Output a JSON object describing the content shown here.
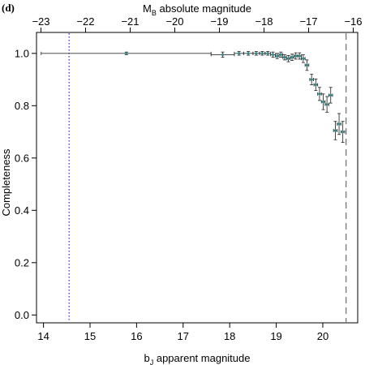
{
  "panel_label": "(d)",
  "chart_data": {
    "type": "scatter",
    "xlabel_bottom": "b",
    "xlabel_bottom_sub": "J",
    "xlabel_bottom_rest": " apparent magnitude",
    "xlabel_top": "M",
    "xlabel_top_sub": "B",
    "xlabel_top_rest": " absolute magnitude",
    "ylabel": "Completeness",
    "xlim": [
      13.85,
      20.75
    ],
    "ylim": [
      -0.03,
      1.08
    ],
    "top_xlim": [
      -23.1,
      -15.9
    ],
    "xticks_bottom": [
      14,
      15,
      16,
      17,
      18,
      19,
      20
    ],
    "xtick_labels_bottom": [
      "14",
      "15",
      "16",
      "17",
      "18",
      "19",
      "20"
    ],
    "xticks_top": [
      -23,
      -22,
      -21,
      -20,
      -19,
      -18,
      -17,
      -16
    ],
    "xtick_labels_top": [
      "−23",
      "−22",
      "−21",
      "−20",
      "−19",
      "−18",
      "−17",
      "−16"
    ],
    "yticks": [
      0.0,
      0.2,
      0.4,
      0.6,
      0.8,
      1.0
    ],
    "ytick_labels": [
      "0.0",
      "0.2",
      "0.4",
      "0.6",
      "0.8",
      "1.0"
    ],
    "vlines": [
      {
        "x": 14.55,
        "style": "dotted",
        "color": "#3b3bdf"
      },
      {
        "x": 20.5,
        "style": "dashed",
        "color": "#777777"
      }
    ],
    "series": [
      {
        "points": [
          {
            "x": 15.78,
            "y": 1.0,
            "xlo": 13.95,
            "xhi": 17.6,
            "ylo": 0.995,
            "yhi": 1.005
          },
          {
            "x": 17.85,
            "y": 0.995,
            "xlo": 17.6,
            "xhi": 18.1,
            "ylo": 0.985,
            "yhi": 1.005
          },
          {
            "x": 18.2,
            "y": 1.0,
            "xlo": 18.1,
            "xhi": 18.3,
            "ylo": 0.993,
            "yhi": 1.007
          },
          {
            "x": 18.4,
            "y": 1.0,
            "xlo": 18.3,
            "xhi": 18.5,
            "ylo": 0.993,
            "yhi": 1.007
          },
          {
            "x": 18.57,
            "y": 1.0,
            "xlo": 18.5,
            "xhi": 18.64,
            "ylo": 0.993,
            "yhi": 1.007
          },
          {
            "x": 18.7,
            "y": 1.0,
            "xlo": 18.64,
            "xhi": 18.76,
            "ylo": 0.993,
            "yhi": 1.007
          },
          {
            "x": 18.82,
            "y": 1.0,
            "xlo": 18.76,
            "xhi": 18.88,
            "ylo": 0.993,
            "yhi": 1.007
          },
          {
            "x": 18.93,
            "y": 0.995,
            "xlo": 18.88,
            "xhi": 18.98,
            "ylo": 0.985,
            "yhi": 1.005
          },
          {
            "x": 19.02,
            "y": 0.99,
            "xlo": 18.98,
            "xhi": 19.06,
            "ylo": 0.98,
            "yhi": 1.0
          },
          {
            "x": 19.1,
            "y": 0.995,
            "xlo": 19.06,
            "xhi": 19.14,
            "ylo": 0.985,
            "yhi": 1.005
          },
          {
            "x": 19.18,
            "y": 0.985,
            "xlo": 19.14,
            "xhi": 19.22,
            "ylo": 0.975,
            "yhi": 0.995
          },
          {
            "x": 19.26,
            "y": 0.98,
            "xlo": 19.22,
            "xhi": 19.3,
            "ylo": 0.968,
            "yhi": 0.992
          },
          {
            "x": 19.34,
            "y": 0.985,
            "xlo": 19.3,
            "xhi": 19.38,
            "ylo": 0.973,
            "yhi": 0.997
          },
          {
            "x": 19.42,
            "y": 0.99,
            "xlo": 19.38,
            "xhi": 19.46,
            "ylo": 0.978,
            "yhi": 1.002
          },
          {
            "x": 19.5,
            "y": 0.99,
            "xlo": 19.46,
            "xhi": 19.54,
            "ylo": 0.978,
            "yhi": 1.002
          },
          {
            "x": 19.58,
            "y": 0.98,
            "xlo": 19.54,
            "xhi": 19.62,
            "ylo": 0.965,
            "yhi": 0.995
          },
          {
            "x": 19.66,
            "y": 0.955,
            "xlo": 19.62,
            "xhi": 19.7,
            "ylo": 0.935,
            "yhi": 0.975
          },
          {
            "x": 19.76,
            "y": 0.9,
            "xlo": 19.72,
            "xhi": 19.8,
            "ylo": 0.88,
            "yhi": 0.92
          },
          {
            "x": 19.85,
            "y": 0.88,
            "xlo": 19.81,
            "xhi": 19.89,
            "ylo": 0.858,
            "yhi": 0.902
          },
          {
            "x": 19.93,
            "y": 0.845,
            "xlo": 19.89,
            "xhi": 19.97,
            "ylo": 0.82,
            "yhi": 0.87
          },
          {
            "x": 20.01,
            "y": 0.815,
            "xlo": 19.97,
            "xhi": 20.05,
            "ylo": 0.785,
            "yhi": 0.845
          },
          {
            "x": 20.09,
            "y": 0.805,
            "xlo": 20.05,
            "xhi": 20.13,
            "ylo": 0.775,
            "yhi": 0.835
          },
          {
            "x": 20.17,
            "y": 0.84,
            "xlo": 20.13,
            "xhi": 20.21,
            "ylo": 0.81,
            "yhi": 0.87
          },
          {
            "x": 20.27,
            "y": 0.705,
            "xlo": 20.23,
            "xhi": 20.31,
            "ylo": 0.67,
            "yhi": 0.74
          },
          {
            "x": 20.35,
            "y": 0.73,
            "xlo": 20.31,
            "xhi": 20.39,
            "ylo": 0.69,
            "yhi": 0.77
          },
          {
            "x": 20.43,
            "y": 0.7,
            "xlo": 20.39,
            "xhi": 20.47,
            "ylo": 0.66,
            "yhi": 0.74
          }
        ]
      }
    ]
  }
}
